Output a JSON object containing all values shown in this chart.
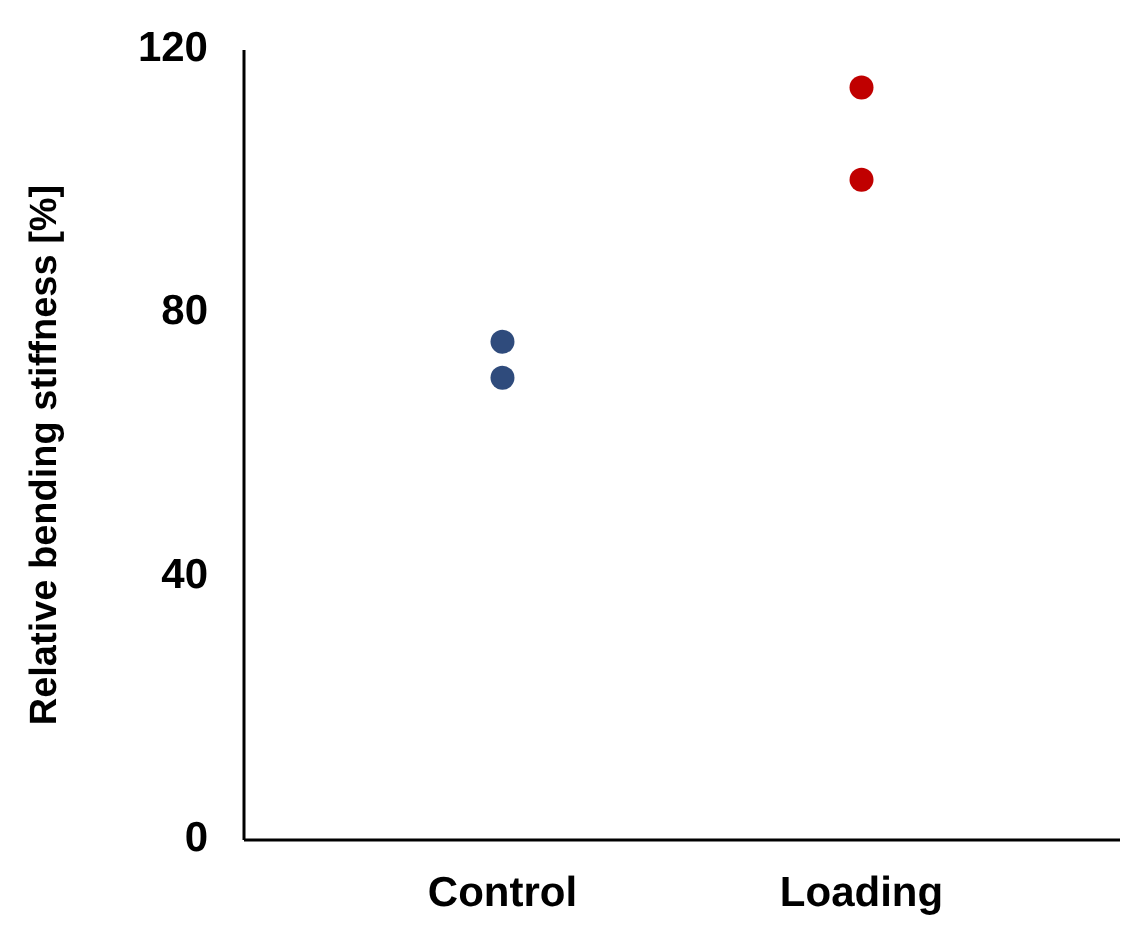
{
  "chart_data": {
    "type": "scatter",
    "ylabel": "Relative bending stiffness [%]",
    "categories": [
      "Control",
      "Loading"
    ],
    "ylim": [
      0,
      120
    ],
    "yticks": [
      0,
      40,
      80,
      120
    ],
    "marker": "circle",
    "series": [
      {
        "color": "#2f4b7c",
        "x": [
          "Control",
          "Control"
        ],
        "values": [
          75.7,
          70.2
        ]
      },
      {
        "color": "#c00000",
        "x": [
          "Loading",
          "Loading"
        ],
        "values": [
          114.3,
          100.3
        ]
      }
    ]
  }
}
